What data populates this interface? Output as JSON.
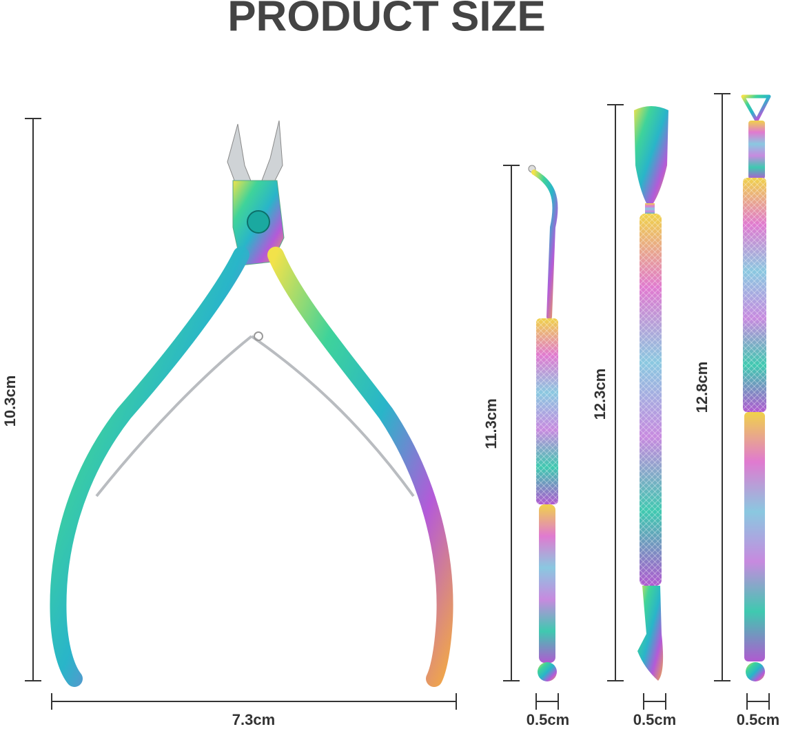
{
  "title": "PRODUCT SIZE",
  "items": [
    {
      "height": "10.3cm",
      "width": "7.3cm"
    },
    {
      "height": "11.3cm",
      "width": "0.5cm"
    },
    {
      "height": "12.3cm",
      "width": "0.5cm"
    },
    {
      "height": "12.8cm",
      "width": "0.5cm"
    }
  ]
}
